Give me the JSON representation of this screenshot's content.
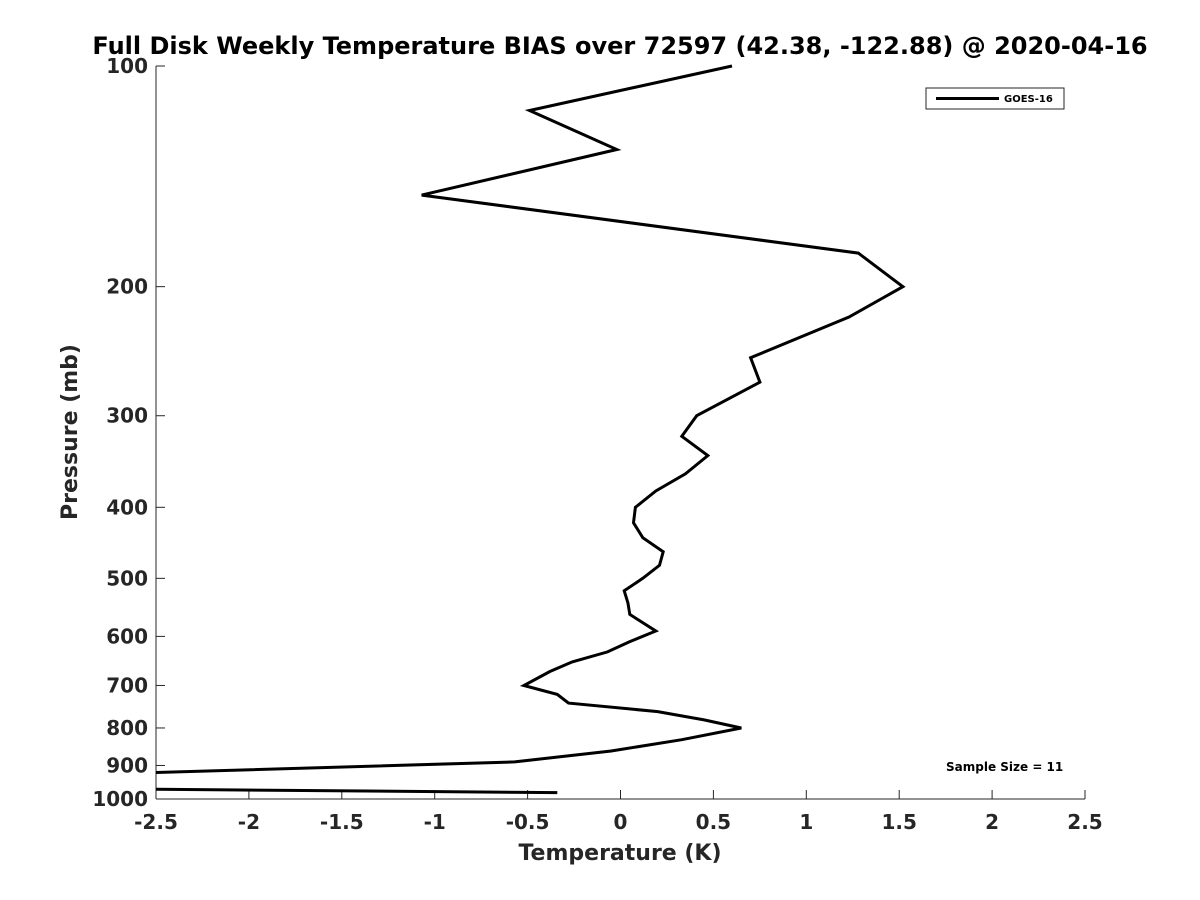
{
  "chart_data": {
    "type": "line",
    "title": "Full Disk Weekly Temperature BIAS over 72597 (42.38, -122.88) @ 2020-04-16",
    "xlabel": "Temperature (K)",
    "ylabel": "Pressure (mb)",
    "xlim": [
      -2.5,
      2.5
    ],
    "ylim": [
      100,
      1000
    ],
    "y_scale": "log",
    "y_reversed": true,
    "x_ticks": [
      "-2.5",
      "-2",
      "-1.5",
      "-1",
      "-0.5",
      "0",
      "0.5",
      "1",
      "1.5",
      "2",
      "2.5"
    ],
    "y_ticks": [
      "100",
      "200",
      "300",
      "400",
      "500",
      "600",
      "700",
      "800",
      "900",
      "1000"
    ],
    "grid": false,
    "legend_position": "top-right",
    "annotation": "Sample Size = 11",
    "series": [
      {
        "name": "GOES-16",
        "color": "#000000",
        "points": [
          {
            "t": 0.6,
            "p": 100
          },
          {
            "t": -0.49,
            "p": 115
          },
          {
            "t": -0.02,
            "p": 130
          },
          {
            "t": -1.07,
            "p": 150
          },
          {
            "t": 1.28,
            "p": 180
          },
          {
            "t": 1.52,
            "p": 200
          },
          {
            "t": 1.23,
            "p": 220
          },
          {
            "t": 0.7,
            "p": 250
          },
          {
            "t": 0.75,
            "p": 270
          },
          {
            "t": 0.41,
            "p": 300
          },
          {
            "t": 0.33,
            "p": 320
          },
          {
            "t": 0.47,
            "p": 340
          },
          {
            "t": 0.35,
            "p": 360
          },
          {
            "t": 0.19,
            "p": 380
          },
          {
            "t": 0.08,
            "p": 400
          },
          {
            "t": 0.07,
            "p": 420
          },
          {
            "t": 0.12,
            "p": 440
          },
          {
            "t": 0.23,
            "p": 460
          },
          {
            "t": 0.21,
            "p": 480
          },
          {
            "t": 0.12,
            "p": 500
          },
          {
            "t": 0.02,
            "p": 520
          },
          {
            "t": 0.04,
            "p": 540
          },
          {
            "t": 0.05,
            "p": 560
          },
          {
            "t": 0.19,
            "p": 590
          },
          {
            "t": 0.05,
            "p": 610
          },
          {
            "t": -0.07,
            "p": 630
          },
          {
            "t": -0.26,
            "p": 650
          },
          {
            "t": -0.38,
            "p": 670
          },
          {
            "t": -0.52,
            "p": 700
          },
          {
            "t": -0.34,
            "p": 720
          },
          {
            "t": -0.28,
            "p": 740
          },
          {
            "t": 0.2,
            "p": 760
          },
          {
            "t": 0.45,
            "p": 780
          },
          {
            "t": 0.65,
            "p": 800
          },
          {
            "t": 0.33,
            "p": 830
          },
          {
            "t": -0.05,
            "p": 860
          },
          {
            "t": -0.57,
            "p": 890
          },
          {
            "t": -2.5,
            "p": 920
          },
          {
            "t": null,
            "p": 940
          },
          {
            "t": -2.5,
            "p": 970
          },
          {
            "t": -0.34,
            "p": 980
          }
        ]
      }
    ]
  }
}
